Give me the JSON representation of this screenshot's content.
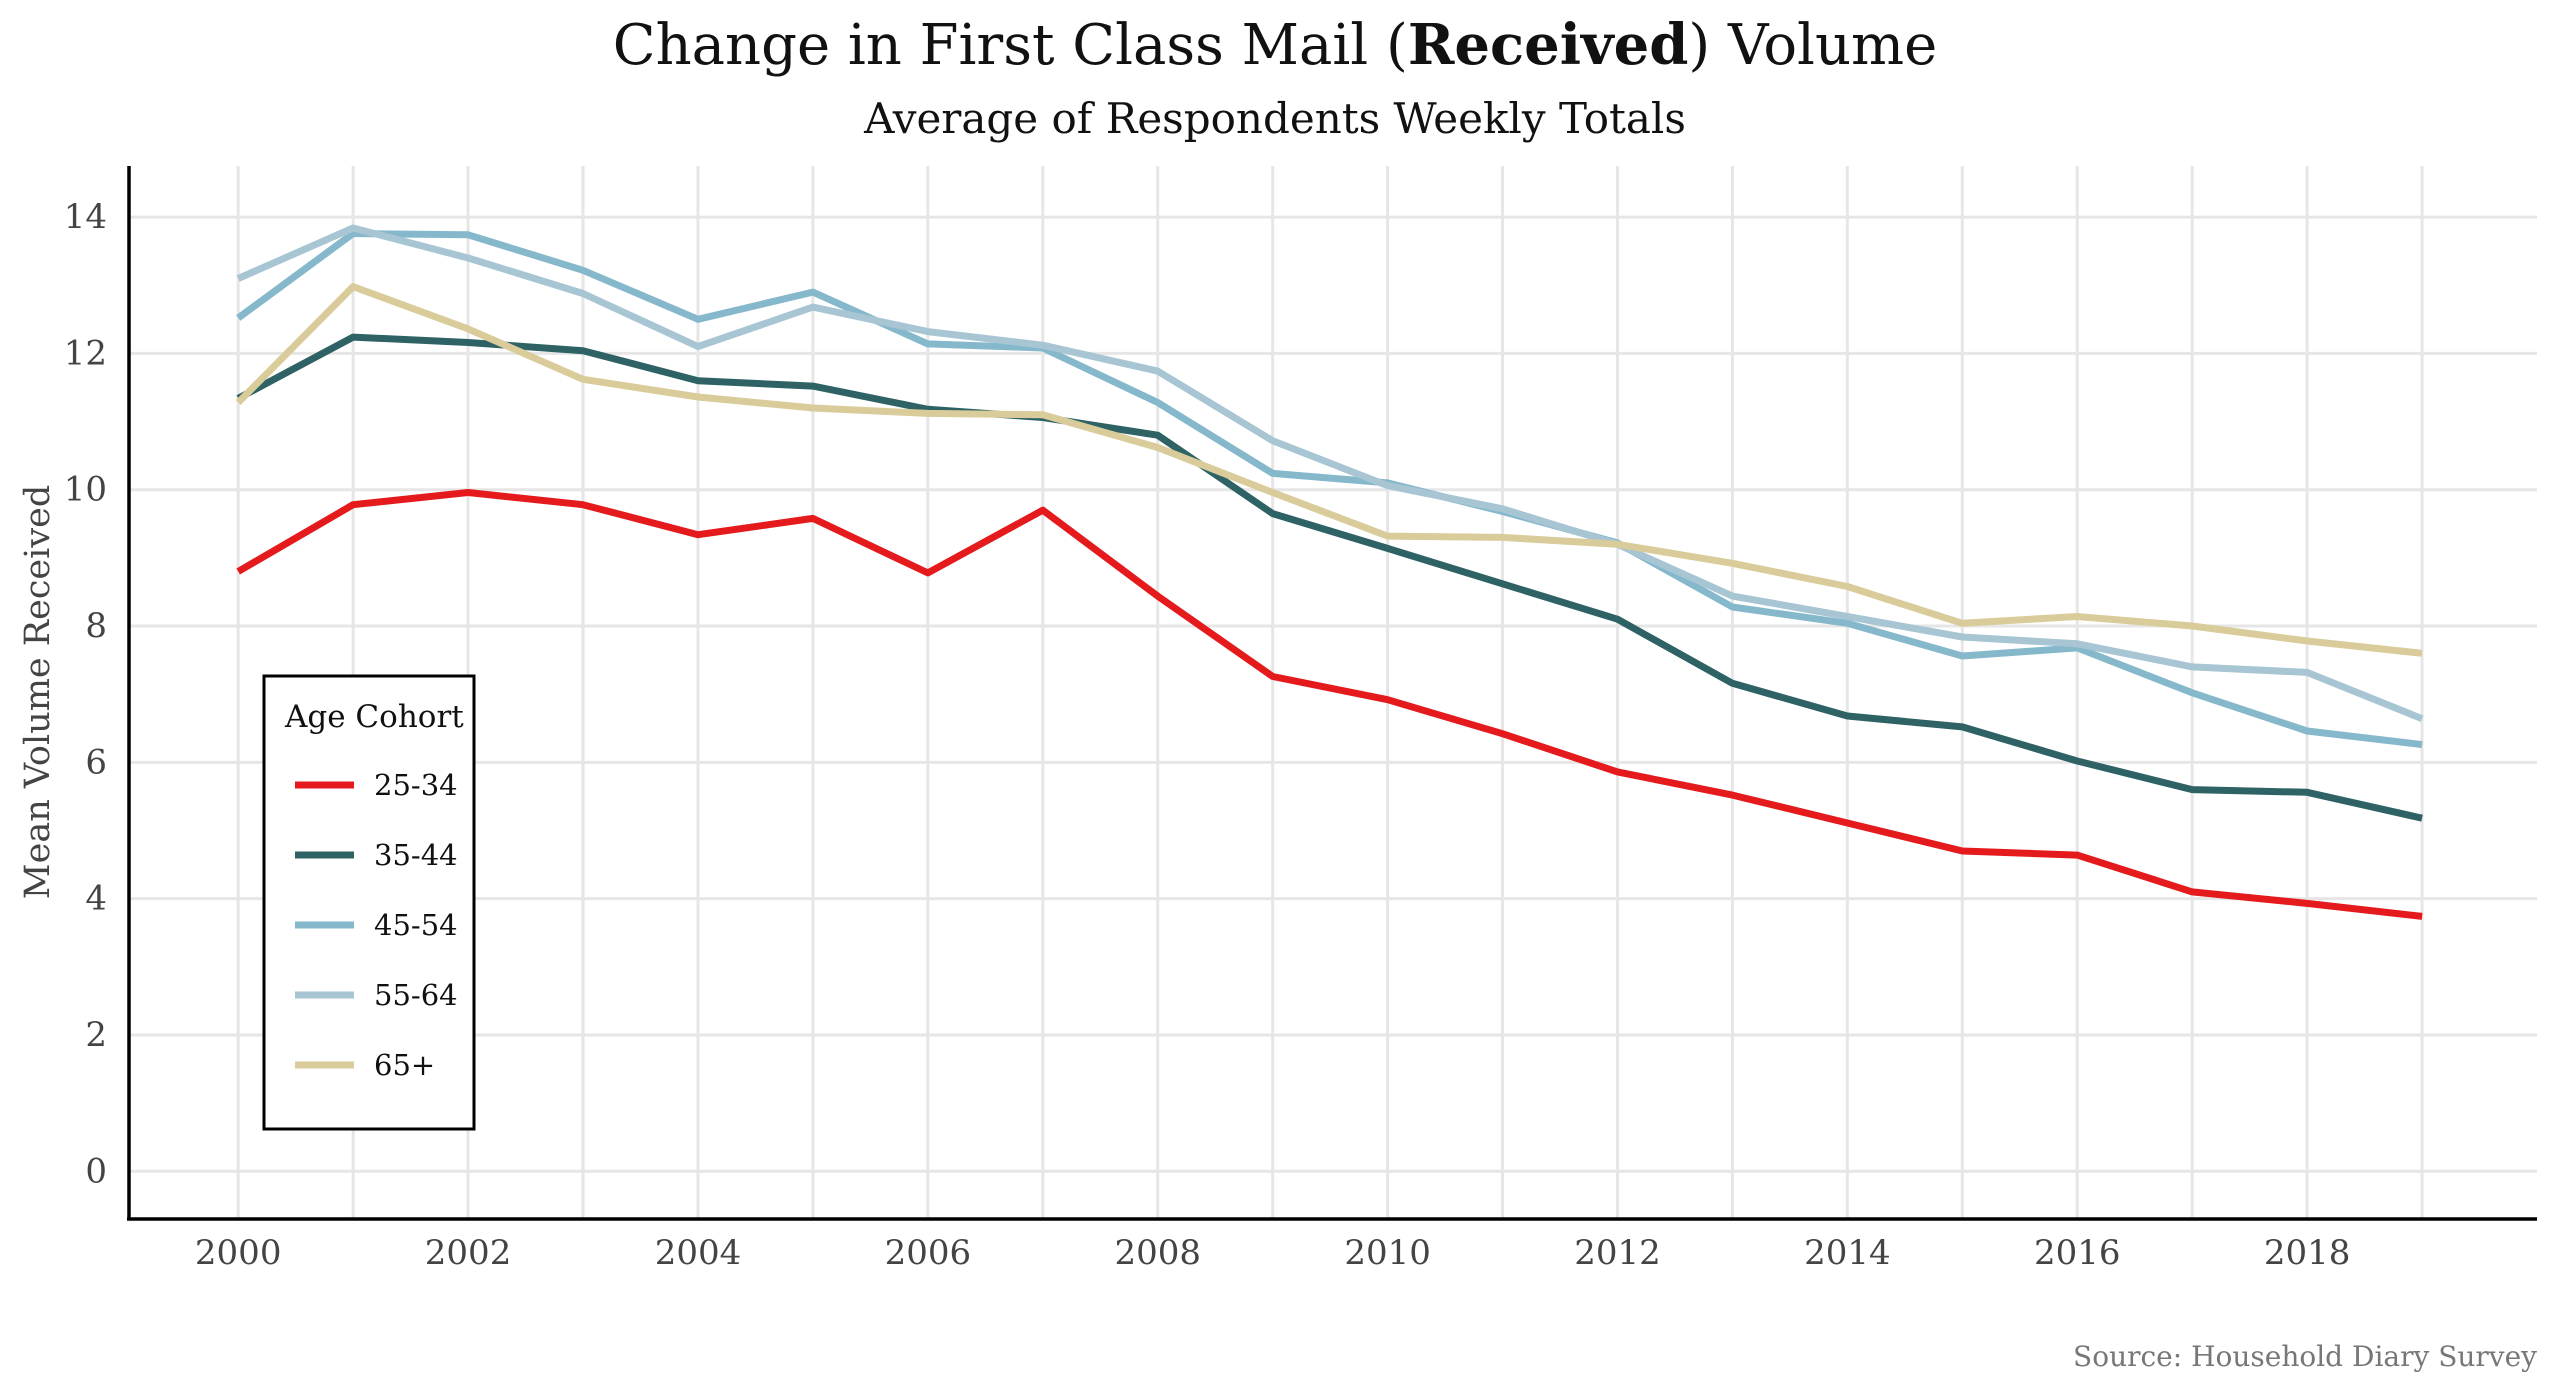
{
  "chart_data": {
    "type": "line",
    "title_prefix": "Change in First Class Mail (",
    "title_bold": "Received",
    "title_suffix": ") Volume",
    "subtitle": "Average of Respondents Weekly Totals",
    "xlabel": "",
    "ylabel": "Mean Volume Received",
    "caption": "Source: Household Diary Survey",
    "x": [
      2000,
      2001,
      2002,
      2003,
      2004,
      2005,
      2006,
      2007,
      2008,
      2009,
      2010,
      2011,
      2012,
      2013,
      2014,
      2015,
      2016,
      2017,
      2018,
      2019
    ],
    "x_ticks": [
      2000,
      2002,
      2004,
      2006,
      2008,
      2010,
      2012,
      2014,
      2016,
      2018
    ],
    "xlim": [
      1999.05,
      2020.0
    ],
    "y_ticks": [
      0,
      2,
      4,
      6,
      8,
      10,
      12,
      14
    ],
    "ylim": [
      -0.7,
      14.75
    ],
    "grid": true,
    "legend": {
      "title": "Age Cohort",
      "placement": "bottom-left"
    },
    "series": [
      {
        "name": "25-34",
        "color": "#e41a1c",
        "values": [
          8.8,
          9.78,
          9.96,
          9.78,
          9.34,
          9.58,
          8.78,
          9.7,
          8.44,
          7.26,
          6.92,
          6.42,
          5.86,
          5.52,
          5.11,
          4.7,
          4.64,
          4.1,
          3.93,
          3.74
        ]
      },
      {
        "name": "35-44",
        "color": "#2e6264",
        "values": [
          11.34,
          12.24,
          12.16,
          12.04,
          11.6,
          11.52,
          11.18,
          11.06,
          10.8,
          9.65,
          9.14,
          8.62,
          8.1,
          7.16,
          6.68,
          6.52,
          6.02,
          5.6,
          5.56,
          5.18
        ]
      },
      {
        "name": "45-54",
        "color": "#86b8cc",
        "values": [
          12.52,
          13.76,
          13.74,
          13.22,
          12.5,
          12.9,
          12.14,
          12.08,
          11.28,
          10.24,
          10.1,
          9.68,
          9.22,
          8.28,
          8.04,
          7.56,
          7.68,
          7.02,
          6.46,
          6.26
        ]
      },
      {
        "name": "55-64",
        "color": "#a8c5d4",
        "values": [
          13.1,
          13.84,
          13.4,
          12.88,
          12.1,
          12.68,
          12.32,
          12.12,
          11.74,
          10.72,
          10.06,
          9.72,
          9.2,
          8.44,
          8.14,
          7.84,
          7.74,
          7.4,
          7.32,
          6.64
        ]
      },
      {
        "name": "65+",
        "color": "#d9cc9a",
        "values": [
          11.28,
          12.98,
          12.36,
          11.62,
          11.36,
          11.2,
          11.12,
          11.1,
          10.62,
          9.96,
          9.32,
          9.3,
          9.2,
          8.92,
          8.58,
          8.04,
          8.14,
          8.0,
          7.78,
          7.6
        ]
      }
    ]
  }
}
